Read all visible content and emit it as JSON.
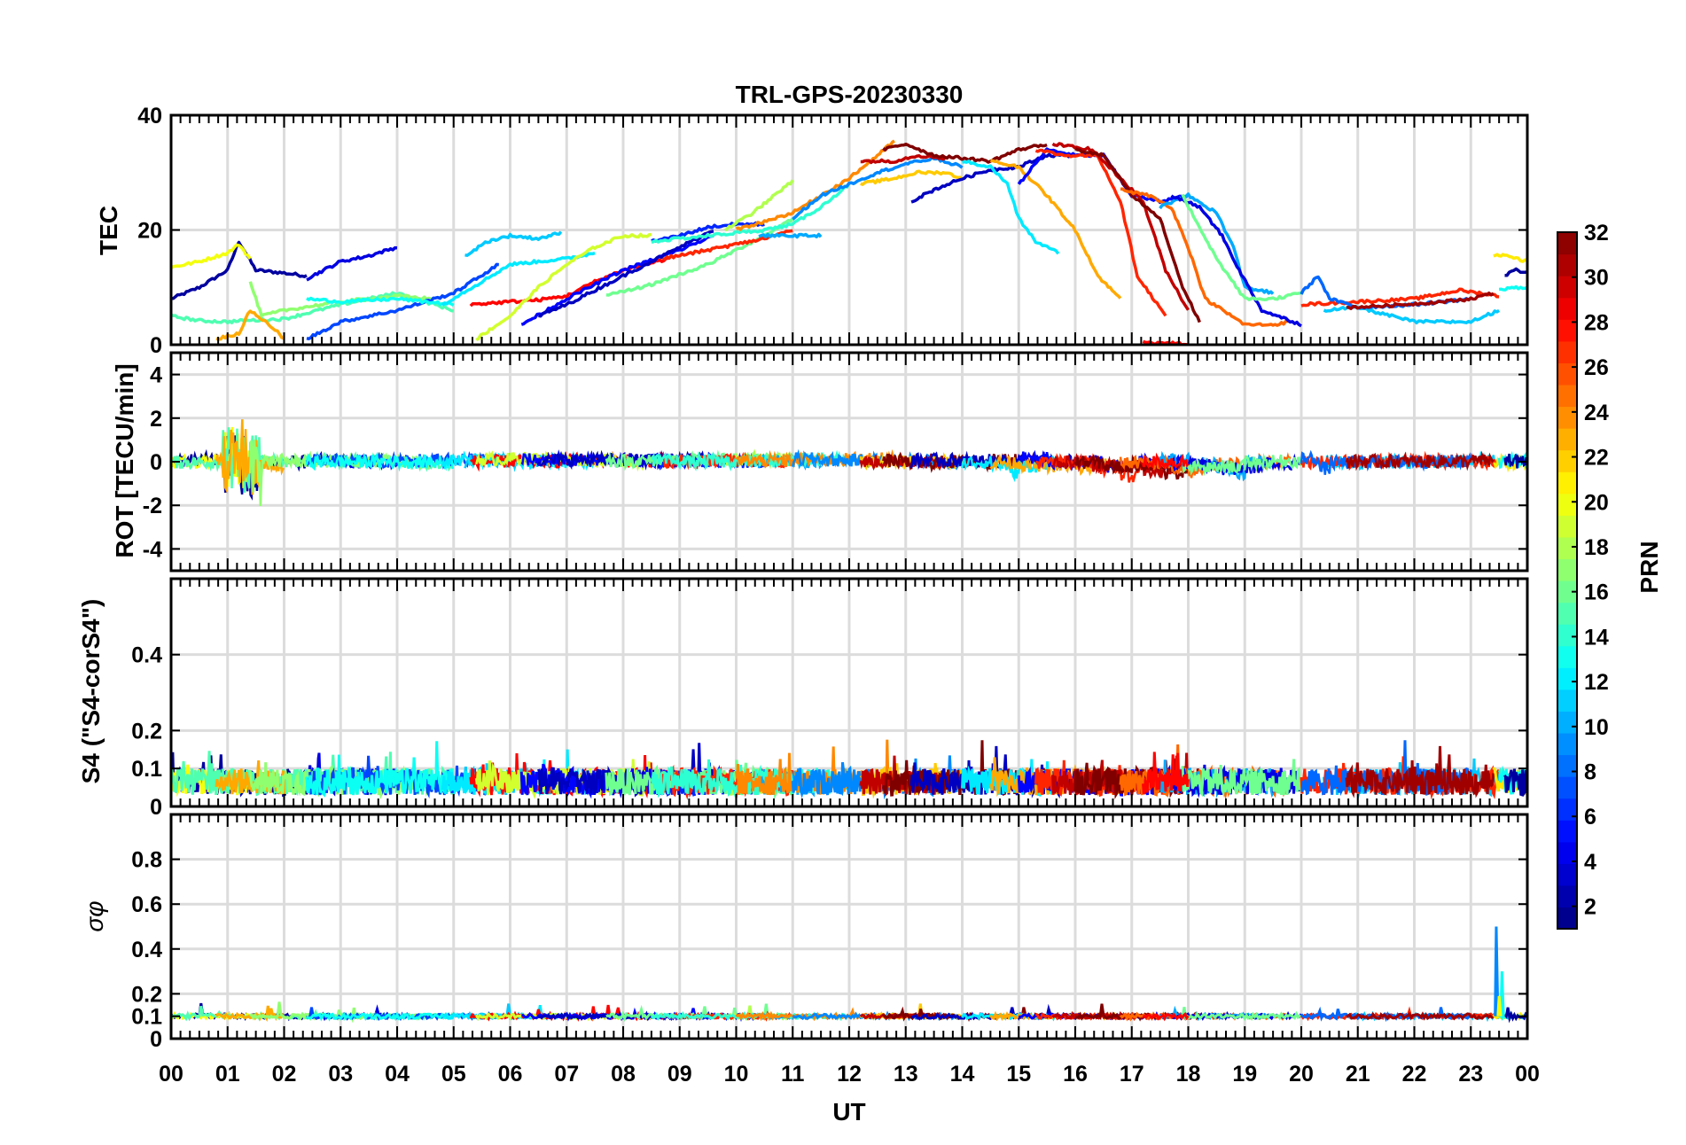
{
  "chart_data": {
    "type": "line",
    "title": "TRL-GPS-20230330",
    "xlabel": "UT",
    "x_tick_labels": [
      "00",
      "01",
      "02",
      "03",
      "04",
      "05",
      "06",
      "07",
      "08",
      "09",
      "10",
      "11",
      "12",
      "13",
      "14",
      "15",
      "16",
      "17",
      "18",
      "19",
      "20",
      "21",
      "22",
      "23",
      "00"
    ],
    "xlim": [
      0,
      24
    ],
    "colorbar": {
      "label": "PRN",
      "range": [
        1,
        32
      ],
      "tick_labels": [
        "2",
        "4",
        "6",
        "8",
        "10",
        "12",
        "14",
        "16",
        "18",
        "20",
        "22",
        "24",
        "26",
        "28",
        "30",
        "32"
      ],
      "tick_values": [
        2,
        4,
        6,
        8,
        10,
        12,
        14,
        16,
        18,
        20,
        22,
        24,
        26,
        28,
        30,
        32
      ]
    },
    "panels": [
      {
        "id": "tec",
        "ylabel": "TEC",
        "ylim": [
          0,
          40
        ],
        "y_ticks": [
          0,
          20,
          40
        ],
        "y_tick_labels": [
          "0",
          "20",
          "40"
        ],
        "series": [
          {
            "prn": 2,
            "x": [
              0,
              0.5,
              1.0,
              1.2,
              1.5,
              2.0,
              2.4
            ],
            "y": [
              8,
              10,
              13,
              18,
              13,
              12.5,
              12
            ]
          },
          {
            "prn": 20,
            "x": [
              0,
              0.5,
              1.0,
              1.2,
              1.4
            ],
            "y": [
              13.5,
              14.5,
              16,
              17.5,
              15
            ]
          },
          {
            "prn": 4,
            "x": [
              2.4,
              3.0,
              3.5,
              4.0
            ],
            "y": [
              11.5,
              14.5,
              15.5,
              17
            ]
          },
          {
            "prn": 15,
            "x": [
              0,
              0.5,
              1.0,
              1.3,
              2.0,
              3.0,
              4.0,
              5.0
            ],
            "y": [
              5,
              4.2,
              4,
              4.2,
              4.5,
              7,
              9,
              6
            ]
          },
          {
            "prn": 23,
            "x": [
              0.8,
              1.2,
              1.4,
              1.8,
              2.0
            ],
            "y": [
              1,
              2,
              6,
              3,
              1
            ]
          },
          {
            "prn": 17,
            "x": [
              1.4,
              1.6,
              2.0,
              3.0,
              4.0,
              4.6
            ],
            "y": [
              11,
              5,
              6,
              7.5,
              8.5,
              8
            ]
          },
          {
            "prn": 7,
            "x": [
              2.4,
              3.0,
              4.0,
              5.0,
              5.8
            ],
            "y": [
              1,
              4,
              6,
              9,
              14
            ]
          },
          {
            "prn": 13,
            "x": [
              2.4,
              3.0,
              4.0,
              5.0
            ],
            "y": [
              8,
              7.5,
              8,
              7
            ]
          },
          {
            "prn": 11,
            "x": [
              5.2,
              5.6,
              6.0,
              6.5,
              6.9
            ],
            "y": [
              15.5,
              18,
              19,
              18.5,
              19.5
            ]
          },
          {
            "prn": 12,
            "x": [
              4.8,
              5.5,
              6.0,
              6.5,
              7.0,
              7.5
            ],
            "y": [
              7,
              11,
              14,
              14.5,
              15,
              16
            ]
          },
          {
            "prn": 28,
            "x": [
              5.3,
              6.0,
              6.5,
              7.0,
              7.5,
              8.0,
              8.8
            ],
            "y": [
              7,
              7.5,
              7.8,
              8.5,
              11,
              13,
              15
            ]
          },
          {
            "prn": 19,
            "x": [
              5.4,
              6.0,
              6.5,
              7.0,
              7.5,
              8.0,
              8.5
            ],
            "y": [
              1,
              5,
              10,
              14,
              17,
              19,
              19
            ]
          },
          {
            "prn": 5,
            "x": [
              6.2,
              7.0,
              8.0,
              9.0,
              9.6
            ],
            "y": [
              3.5,
              8,
              13,
              16.5,
              19
            ]
          },
          {
            "prn": 3,
            "x": [
              6.5,
              7.0,
              8.0,
              9.0,
              9.6
            ],
            "y": [
              5,
              7,
              12,
              17,
              20
            ]
          },
          {
            "prn": 6,
            "x": [
              8.5,
              9.0,
              9.5,
              10.0,
              10.5
            ],
            "y": [
              18,
              19,
              20.5,
              21,
              21
            ]
          },
          {
            "prn": 16,
            "x": [
              7.7,
              8.5,
              9.5,
              10.5,
              11.0
            ],
            "y": [
              8.5,
              10.5,
              14,
              19,
              22
            ]
          },
          {
            "prn": 18,
            "x": [
              9.8,
              10.3,
              10.8,
              11.0
            ],
            "y": [
              20,
              23,
              27,
              28.5
            ]
          },
          {
            "prn": 27,
            "x": [
              8.7,
              9.5,
              10.0,
              10.5,
              11.0
            ],
            "y": [
              15,
              16.5,
              17.5,
              18.5,
              20
            ]
          },
          {
            "prn": 10,
            "x": [
              10.4,
              11.0,
              11.5
            ],
            "y": [
              19,
              19,
              19
            ]
          },
          {
            "prn": 14,
            "x": [
              8.5,
              9.5,
              10.5,
              11.0,
              11.5,
              12.0
            ],
            "y": [
              18,
              19,
              20,
              21,
              24,
              28
            ]
          },
          {
            "prn": 24,
            "x": [
              10.0,
              10.5,
              11.0,
              11.5,
              12.0,
              12.5,
              12.8
            ],
            "y": [
              20,
              21.5,
              23,
              26,
              29,
              33,
              35.5
            ]
          },
          {
            "prn": 9,
            "x": [
              11.0,
              11.5,
              12.0,
              12.5,
              13.0,
              13.5,
              14.0
            ],
            "y": [
              22,
              26,
              28,
              30,
              31.5,
              32.5,
              31
            ]
          },
          {
            "prn": 22,
            "x": [
              12.2,
              12.8,
              13.2,
              13.7,
              14.0
            ],
            "y": [
              28,
              29,
              30,
              30,
              29
            ]
          },
          {
            "prn": 30,
            "x": [
              12.2,
              12.8,
              13.2,
              13.7
            ],
            "y": [
              32,
              32,
              33,
              32.5
            ]
          },
          {
            "prn": 32,
            "x": [
              12.6,
              13.0,
              13.5,
              14.0,
              14.5,
              15.0,
              15.5
            ],
            "y": [
              34,
              35,
              33,
              32.5,
              32,
              34,
              35
            ]
          },
          {
            "prn": 3,
            "x": [
              13.1,
              13.5,
              14.0,
              14.5,
              15.0,
              15.5,
              16.0
            ],
            "y": [
              25,
              27,
              29,
              30.5,
              31,
              33,
              33
            ]
          },
          {
            "prn": 12,
            "x": [
              14.0,
              14.5,
              14.8,
              15.0,
              15.3,
              15.7
            ],
            "y": [
              32,
              31,
              28,
              22,
              18,
              16
            ]
          },
          {
            "prn": 23,
            "x": [
              14.5,
              15.0,
              15.5,
              16.0,
              16.4,
              16.8
            ],
            "y": [
              32,
              31,
              26,
              20,
              12,
              8
            ]
          },
          {
            "prn": 5,
            "x": [
              15.0,
              15.5,
              16.0,
              16.5,
              17.0,
              17.5,
              18.0
            ],
            "y": [
              28,
              34,
              33,
              33,
              26,
              25,
              26
            ]
          },
          {
            "prn": 27,
            "x": [
              15.3,
              15.8,
              16.4,
              16.8,
              17.1,
              17.6
            ],
            "y": [
              34,
              33,
              33,
              25,
              12,
              5
            ]
          },
          {
            "prn": 30,
            "x": [
              15.6,
              16.3,
              16.8,
              17.2,
              17.6,
              18.0
            ],
            "y": [
              35,
              34,
              29,
              25,
              13,
              6
            ]
          },
          {
            "prn": 32,
            "x": [
              16.0,
              16.5,
              17.0,
              17.5,
              17.9,
              18.2
            ],
            "y": [
              34,
              33,
              26,
              22,
              10,
              4
            ]
          },
          {
            "prn": 25,
            "x": [
              16.8,
              17.3,
              17.7,
              18.0,
              18.3,
              19.0,
              19.5,
              19.8
            ],
            "y": [
              27,
              26,
              24,
              17,
              8,
              3.5,
              3.5,
              4
            ]
          },
          {
            "prn": 10,
            "x": [
              17.5,
              18.0,
              18.5,
              18.8,
              19.0,
              19.5
            ],
            "y": [
              24,
              26,
              23,
              17,
              10,
              9
            ]
          },
          {
            "prn": 4,
            "x": [
              17.7,
              18.2,
              18.6,
              18.9,
              19.3,
              20.0
            ],
            "y": [
              26,
              24,
              19,
              13,
              6,
              3.5
            ]
          },
          {
            "prn": 16,
            "x": [
              17.9,
              18.5,
              19.0,
              19.5,
              20.0
            ],
            "y": [
              26,
              15,
              8,
              8,
              9
            ]
          },
          {
            "prn": 28,
            "x": [
              17.2,
              17.5,
              17.8,
              18.0
            ],
            "y": [
              0.5,
              0.3,
              0.2,
              0.1
            ]
          },
          {
            "prn": 11,
            "x": [
              20.4,
              21.0,
              22.0,
              23.0,
              23.5
            ],
            "y": [
              6,
              6.5,
              4,
              4,
              6
            ]
          },
          {
            "prn": 27,
            "x": [
              20.0,
              21.0,
              22.0,
              22.8,
              23.5
            ],
            "y": [
              7,
              7.5,
              8,
              9.5,
              8.5
            ]
          },
          {
            "prn": 8,
            "x": [
              20.0,
              20.3,
              20.5,
              21.0,
              22.0,
              23.0
            ],
            "y": [
              9,
              12,
              8,
              6.5,
              7,
              8
            ]
          },
          {
            "prn": 31,
            "x": [
              20.8,
              21.5,
              22.5,
              23.0,
              23.4
            ],
            "y": [
              6.5,
              6.8,
              7.5,
              8,
              9
            ]
          },
          {
            "prn": 21,
            "x": [
              23.4,
              23.6,
              23.8,
              24.0
            ],
            "y": [
              15.5,
              15.5,
              15,
              14.5
            ]
          },
          {
            "prn": 13,
            "x": [
              23.5,
              23.8,
              24.0
            ],
            "y": [
              9.5,
              10,
              10
            ]
          },
          {
            "prn": 2,
            "x": [
              23.6,
              23.8,
              24.0
            ],
            "y": [
              12,
              13,
              12.5
            ]
          }
        ]
      },
      {
        "id": "rot",
        "ylabel": "ROT [TECU/min]",
        "ylim": [
          -5,
          5
        ],
        "y_ticks": [
          -4,
          -2,
          0,
          2,
          4
        ],
        "y_tick_labels": [
          "-4",
          "-2",
          "0",
          "2",
          "4"
        ]
      },
      {
        "id": "s4",
        "ylabel": "S4 (\"S4-corS4\")",
        "ylim": [
          0,
          0.6
        ],
        "y_ticks": [
          0,
          0.1,
          0.2,
          0.4
        ],
        "y_tick_labels": [
          "0",
          "0.1",
          "0.2",
          "0.4"
        ]
      },
      {
        "id": "sigma",
        "ylabel": "σφ",
        "ylim": [
          0,
          1
        ],
        "y_ticks": [
          0,
          0.1,
          0.2,
          0.4,
          0.6,
          0.8
        ],
        "y_tick_labels": [
          "0",
          "0.1",
          "0.2",
          "0.4",
          "0.6",
          "0.8"
        ],
        "spikes": [
          {
            "prn": 9,
            "x": 23.45,
            "y": 0.5
          },
          {
            "prn": 13,
            "x": 23.55,
            "y": 0.3
          },
          {
            "prn": 20,
            "x": 23.5,
            "y": 0.19
          }
        ]
      }
    ]
  }
}
